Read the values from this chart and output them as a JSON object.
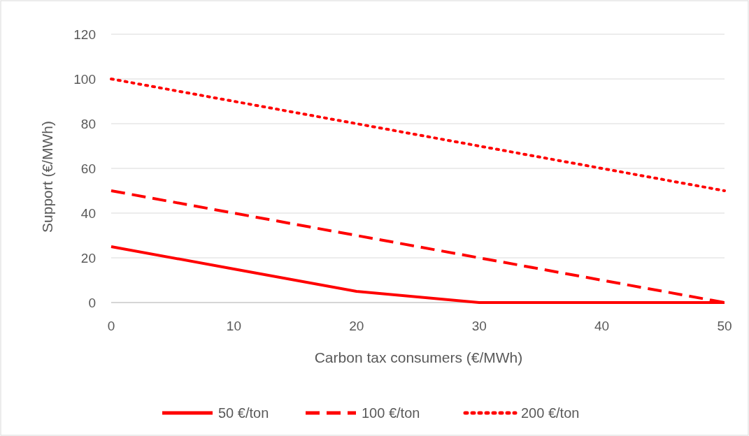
{
  "chart_data": {
    "type": "line",
    "xlabel": "Carbon tax consumers (€/MWh)",
    "ylabel": "Support (€/MWh)",
    "x": [
      0,
      10,
      20,
      30,
      40,
      50
    ],
    "xlim": [
      0,
      50
    ],
    "xticks": [
      0,
      10,
      20,
      30,
      40,
      50
    ],
    "ylim": [
      0,
      120
    ],
    "yticks": [
      0,
      20,
      40,
      60,
      80,
      100,
      120
    ],
    "grid": "y",
    "legend": "bottom",
    "marker": "none",
    "series": [
      {
        "name": "50 €/ton",
        "color": "#ff0000",
        "line_style": "solid",
        "values": [
          25,
          15,
          5,
          0,
          0,
          0
        ]
      },
      {
        "name": "100 €/ton",
        "color": "#ff0000",
        "line_style": "dashed",
        "values": [
          50,
          40,
          30,
          20,
          10,
          0
        ]
      },
      {
        "name": "200 €/ton",
        "color": "#ff0000",
        "line_style": "dotted",
        "values": [
          100,
          90,
          80,
          70,
          60,
          50
        ]
      }
    ]
  }
}
